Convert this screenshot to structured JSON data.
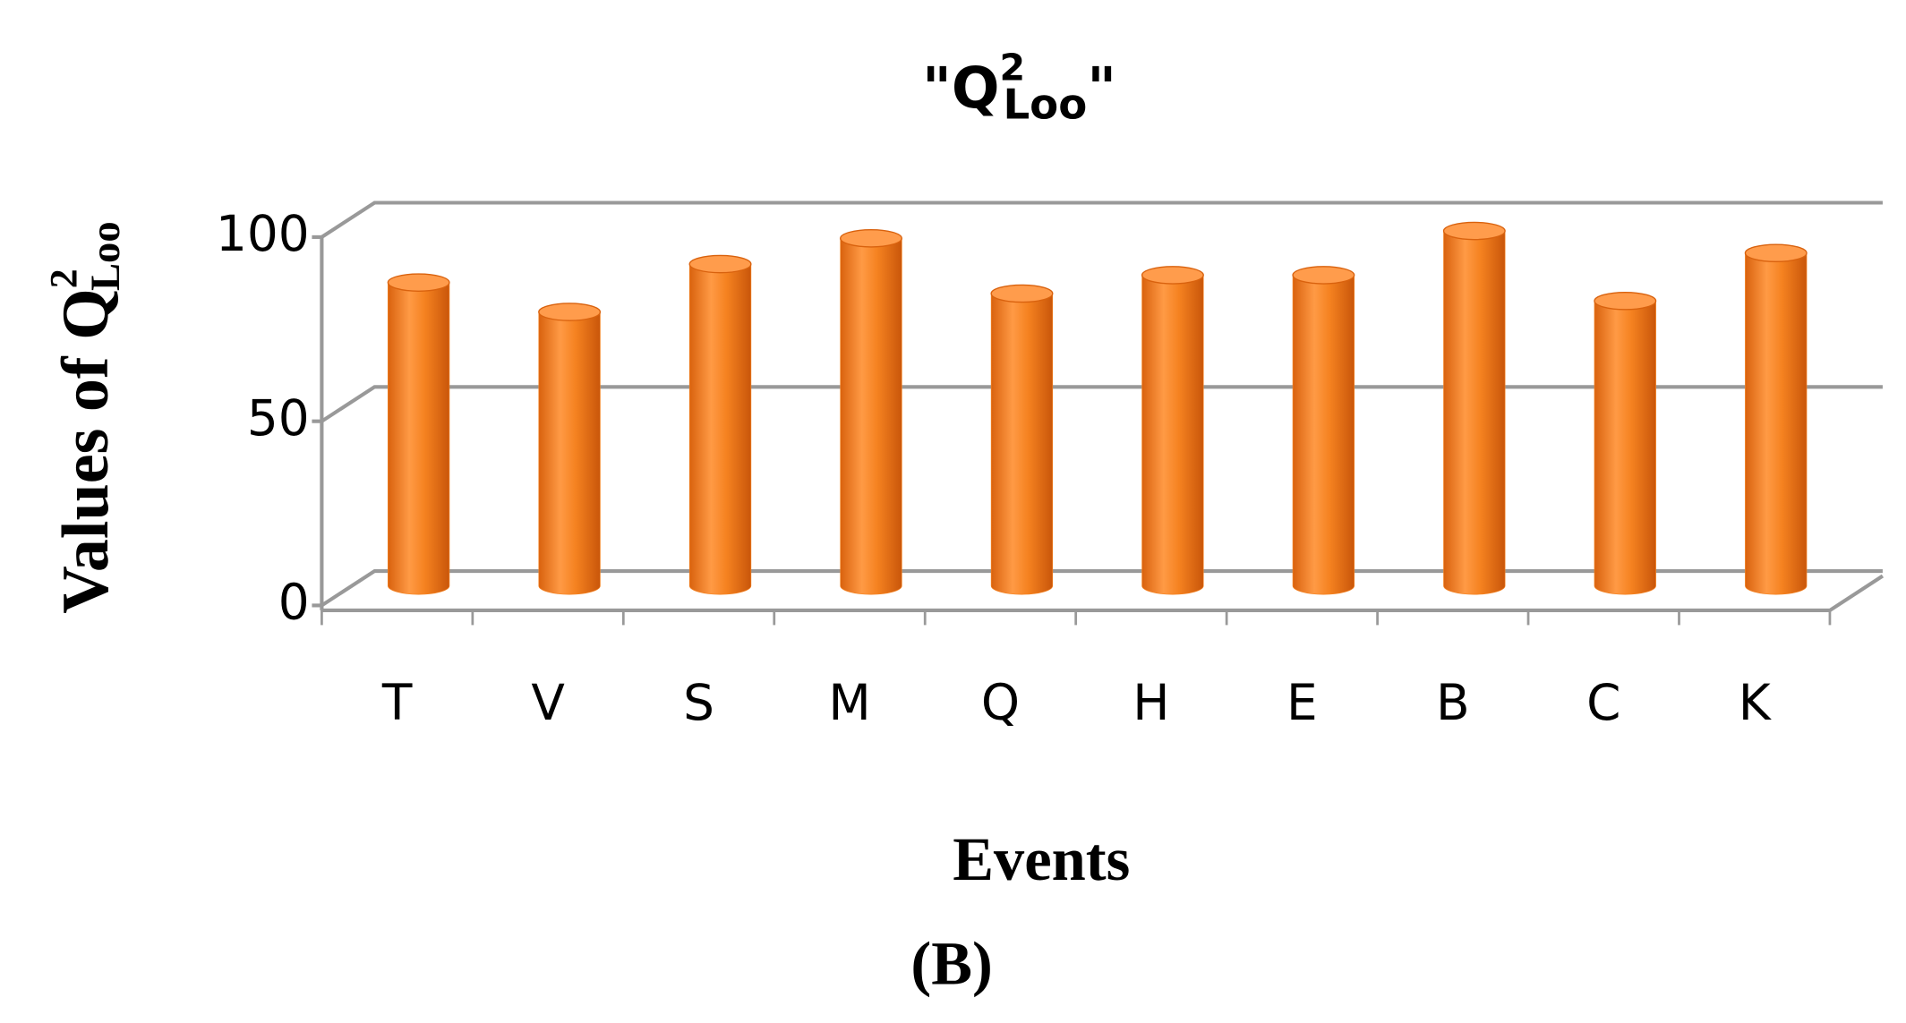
{
  "chart_data": {
    "type": "bar",
    "title": {
      "base": "\"Q",
      "sup": "2",
      "sub": "Loo",
      "end": "\""
    },
    "y_label": {
      "base": "Values of  Q",
      "sup": "2",
      "sub": "Loo"
    },
    "x_label": "Events",
    "panel_label": "(B)",
    "categories": [
      "T",
      "V",
      "S",
      "M",
      "Q",
      "H",
      "E",
      "B",
      "C",
      "K"
    ],
    "values": [
      83,
      75,
      88,
      95,
      80,
      85,
      85,
      97,
      78,
      91
    ],
    "color": "#f58220",
    "ylim": [
      0,
      100
    ],
    "yticks": [
      0,
      50,
      100
    ],
    "grid": true
  }
}
